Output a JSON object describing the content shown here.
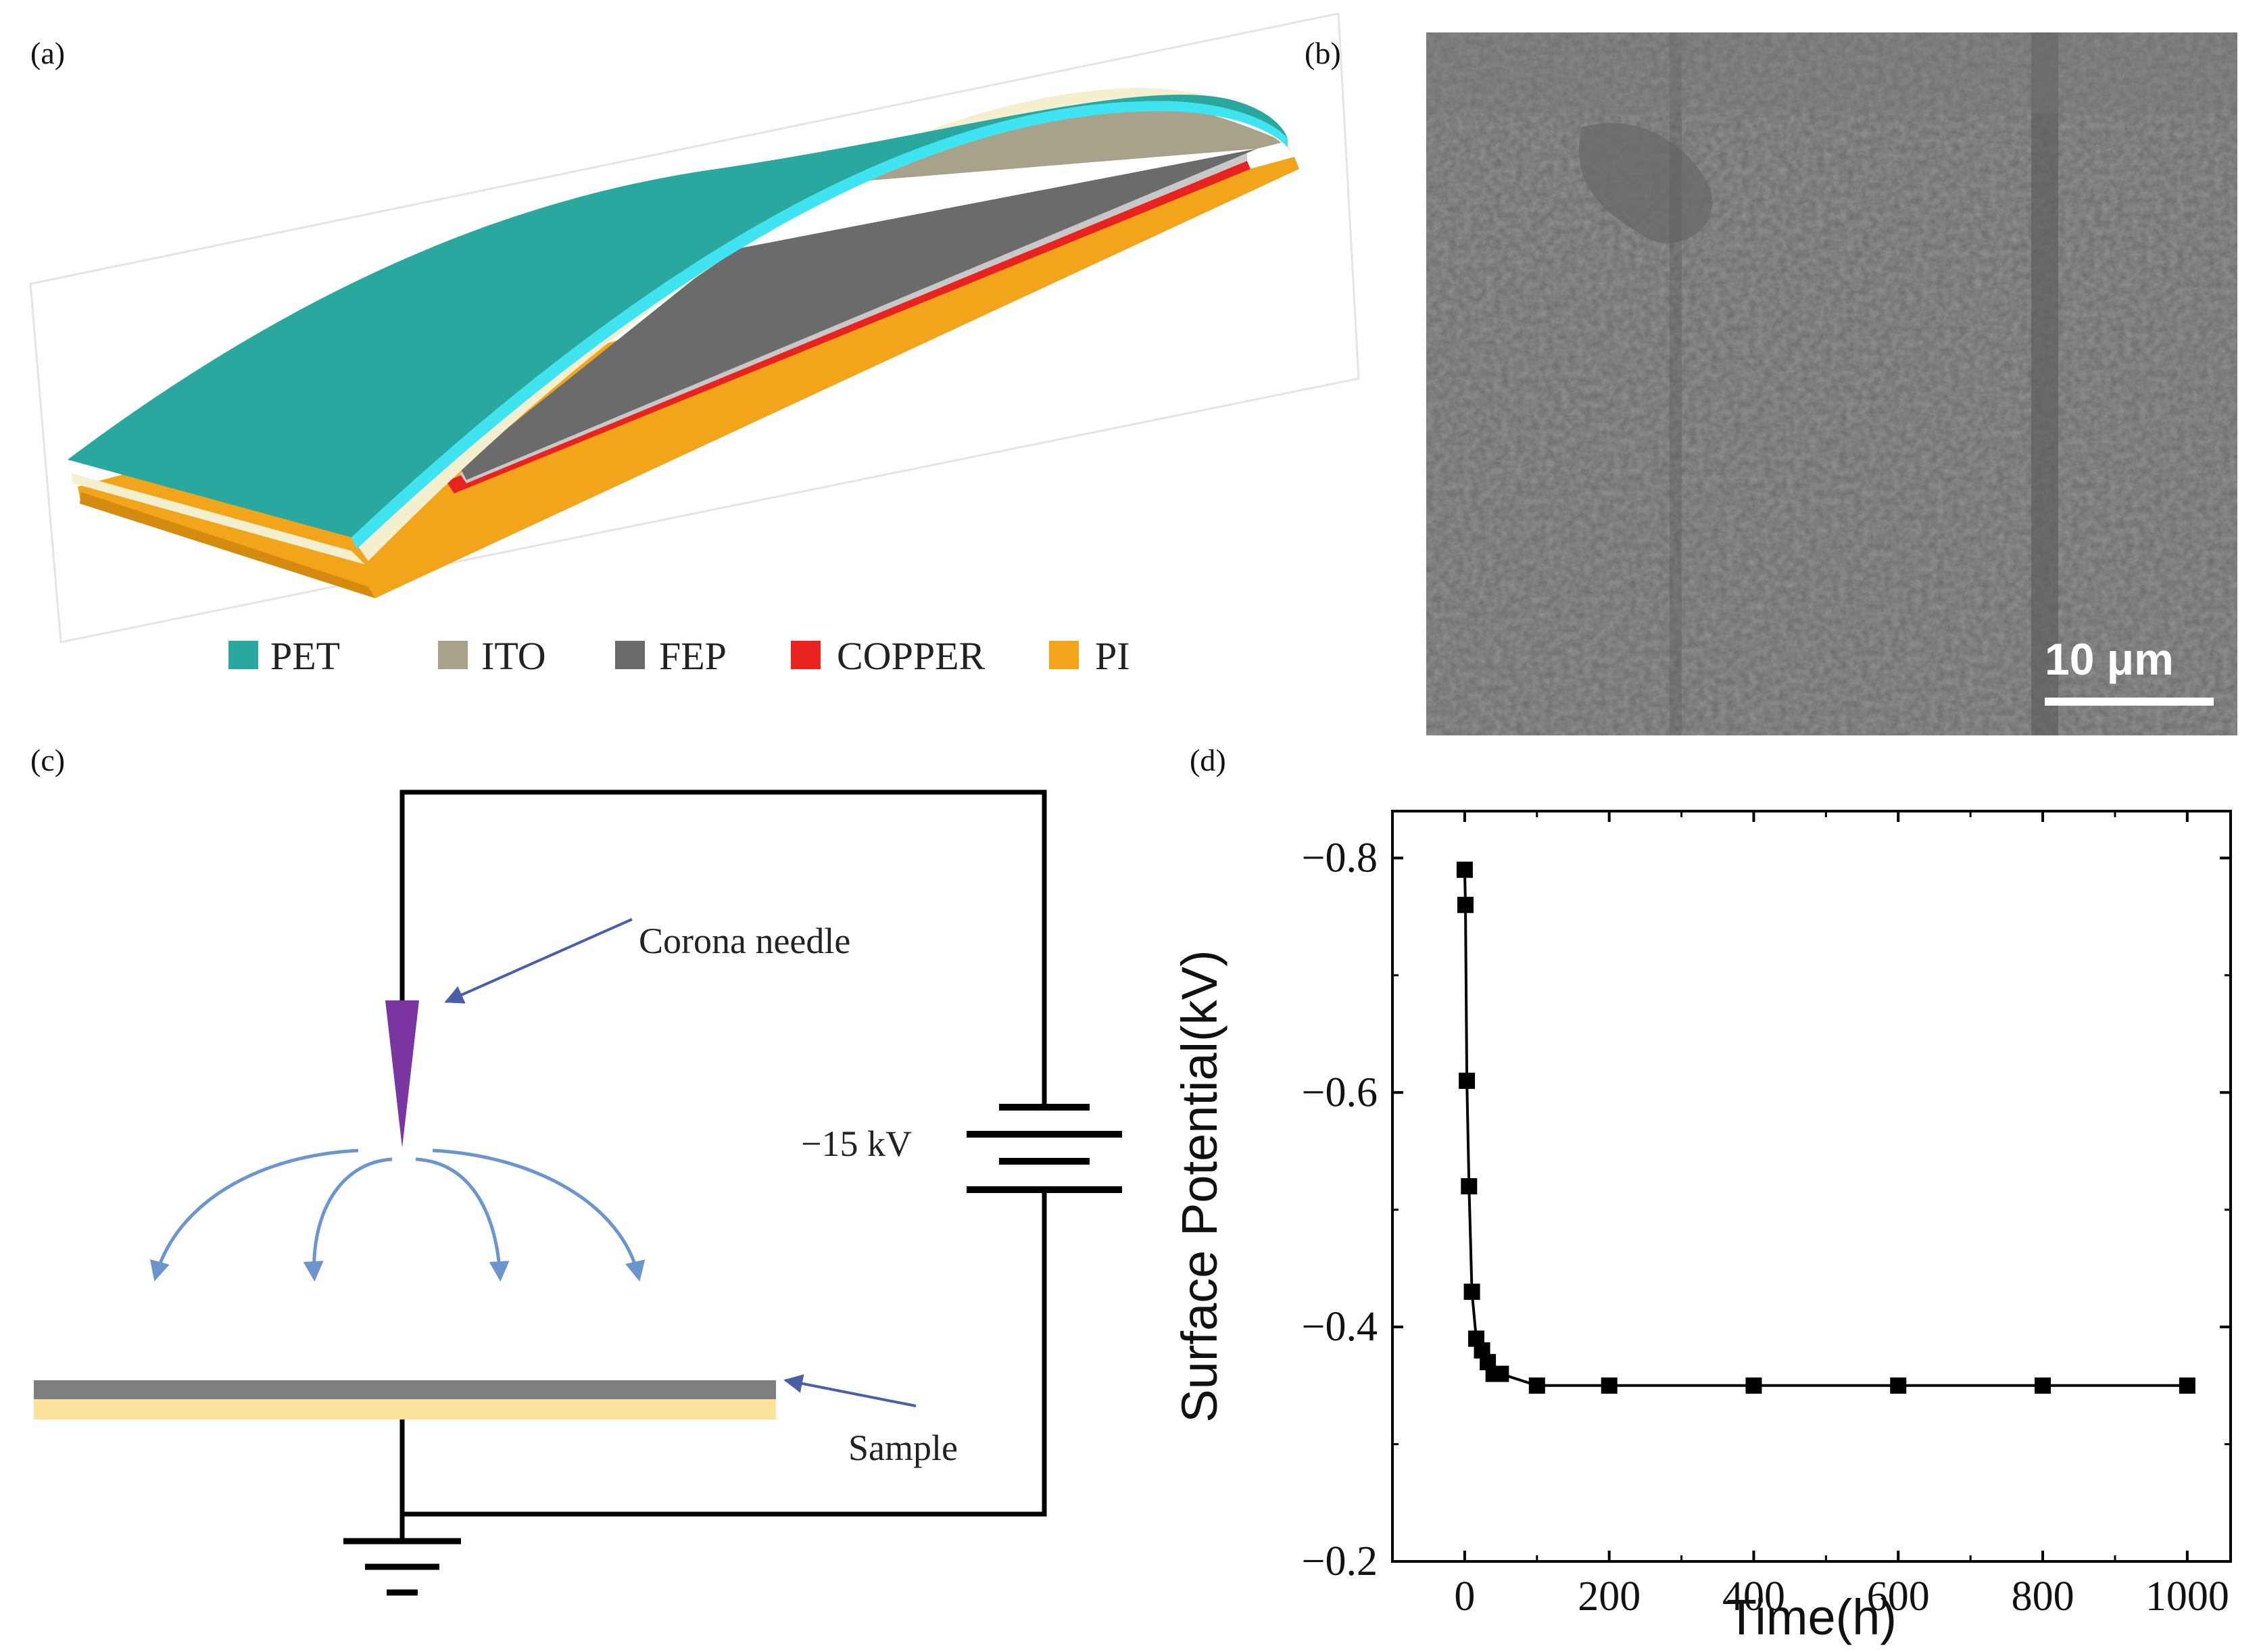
{
  "panel_labels": {
    "a": "(a)",
    "b": "(b)",
    "c": "(c)",
    "d": "(d)"
  },
  "panel_a": {
    "legend": [
      {
        "label": "PET",
        "color": "#2aa8a0"
      },
      {
        "label": "ITO",
        "color": "#a7a289"
      },
      {
        "label": "FEP",
        "color": "#6b6b6b"
      },
      {
        "label": "COPPER",
        "color": "#e8231f"
      },
      {
        "label": "PI",
        "color": "#f2a51b"
      }
    ]
  },
  "panel_b": {
    "scale_bar_label": "10 μm"
  },
  "panel_c": {
    "needle_label": "Corona needle",
    "voltage_label": "−15 kV",
    "sample_label": "Sample"
  },
  "chart_data": {
    "type": "scatter",
    "title": "",
    "xlabel": "Time(h)",
    "ylabel": "Surface Potential(kV)",
    "xlim": [
      -100,
      1060
    ],
    "ylim": [
      -0.2,
      -0.84
    ],
    "xticks": [
      0,
      200,
      400,
      600,
      800,
      1000
    ],
    "xtick_labels": [
      "0",
      "200",
      "400",
      "600",
      "800",
      "1000"
    ],
    "yticks": [
      -0.8,
      -0.6,
      -0.4,
      -0.2
    ],
    "ytick_labels": [
      "−0.8",
      "−0.6",
      "−0.4",
      "−0.2"
    ],
    "series": [
      {
        "name": "Surface potential",
        "x": [
          0,
          1,
          3,
          6,
          10,
          16,
          24,
          32,
          40,
          50,
          100,
          200,
          400,
          600,
          800,
          1000
        ],
        "y": [
          -0.79,
          -0.76,
          -0.61,
          -0.52,
          -0.43,
          -0.39,
          -0.38,
          -0.37,
          -0.36,
          -0.36,
          -0.35,
          -0.35,
          -0.35,
          -0.35,
          -0.35,
          -0.35
        ]
      }
    ],
    "grid": false,
    "marker": "square",
    "line": "connected"
  }
}
